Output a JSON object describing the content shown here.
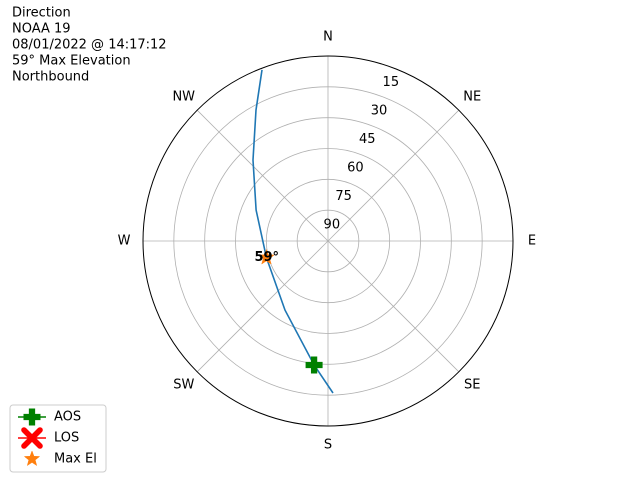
{
  "chart_data": {
    "type": "polar",
    "title_lines": [
      "Direction",
      "NOAA 19",
      "08/01/2022 @ 14:17:12",
      "59° Max Elevation",
      "Northbound"
    ],
    "rlim": [
      90,
      0
    ],
    "rticks": [
      15,
      30,
      45,
      60,
      75,
      90
    ],
    "theta_ticks": [
      {
        "value": 0,
        "label": "N"
      },
      {
        "value": 45,
        "label": "NE"
      },
      {
        "value": 90,
        "label": "E"
      },
      {
        "value": 135,
        "label": "SE"
      },
      {
        "value": 180,
        "label": "S"
      },
      {
        "value": 225,
        "label": "SW"
      },
      {
        "value": 270,
        "label": "W"
      },
      {
        "value": 315,
        "label": "NW"
      }
    ],
    "grid": true,
    "track": {
      "color": "#1f77b4",
      "az": [
        338.9,
        331.2,
        317.2,
        293.3,
        255,
        211.9,
        186.4,
        178.1
      ],
      "el": [
        0.8,
        17.3,
        36.3,
        51.9,
        59,
        50.4,
        29.3,
        16
      ]
    },
    "markers": [
      {
        "name": "AOS",
        "color": "#008000",
        "marker": "plus",
        "az": 186.4,
        "el": 29.3
      },
      {
        "name": "LOS",
        "color": "#ff0000",
        "marker": "x",
        "az": null,
        "el": null
      },
      {
        "name": "Max El",
        "color": "#ff7f0e",
        "marker": "star",
        "az": 255,
        "el": 59,
        "value_label": "59°"
      }
    ],
    "legend": "lower left"
  }
}
